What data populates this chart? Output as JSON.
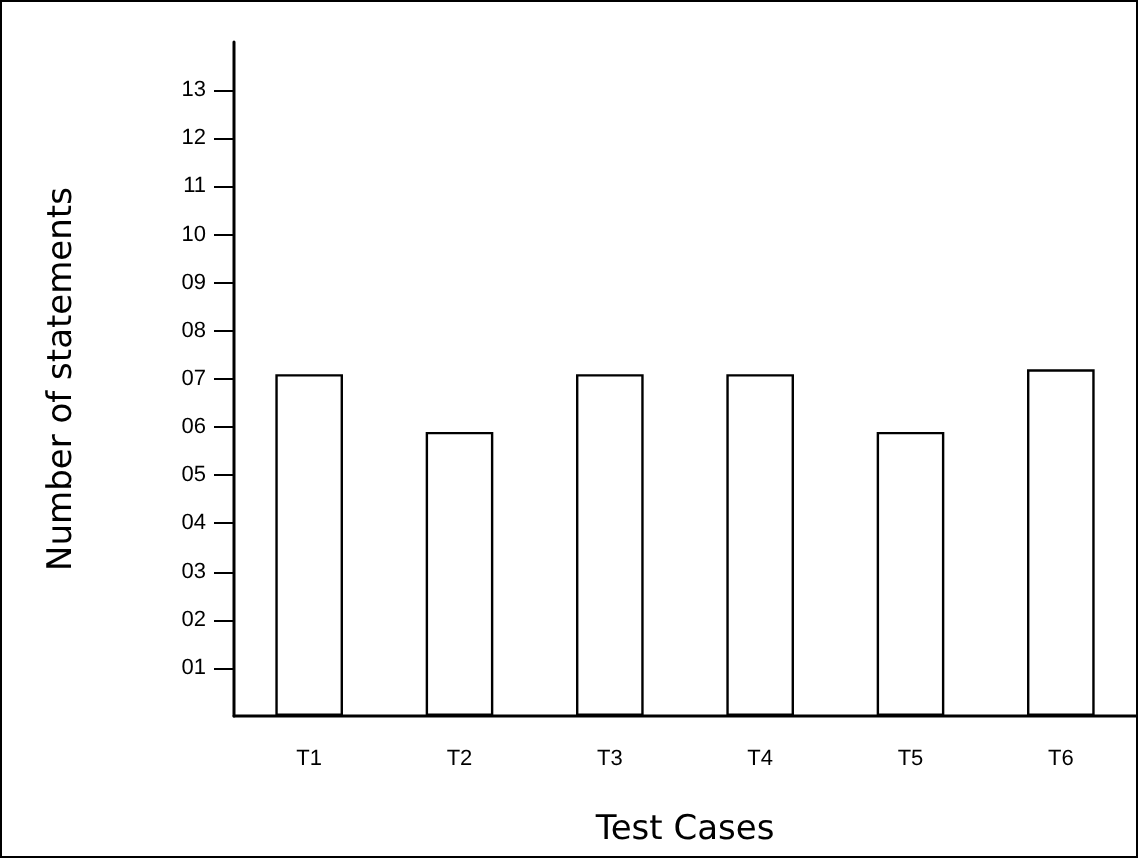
{
  "chart_data": {
    "type": "bar",
    "xlabel": "Test Cases",
    "ylabel": "Number of statements",
    "categories": [
      "T1",
      "T2",
      "T3",
      "T4",
      "T5",
      "T6"
    ],
    "values": [
      7.1,
      5.9,
      7.1,
      7.1,
      5.9,
      7.2
    ],
    "color": "#ffffff",
    "ylim": [
      0,
      14
    ],
    "yticks": [
      {
        "value": 1,
        "label": "01"
      },
      {
        "value": 2,
        "label": "02"
      },
      {
        "value": 3,
        "label": "03"
      },
      {
        "value": 4,
        "label": "04"
      },
      {
        "value": 5,
        "label": "05"
      },
      {
        "value": 6,
        "label": "06"
      },
      {
        "value": 7,
        "label": "07"
      },
      {
        "value": 8,
        "label": "08"
      },
      {
        "value": 9,
        "label": "09"
      },
      10,
      11,
      12,
      13
    ],
    "grid": false
  }
}
